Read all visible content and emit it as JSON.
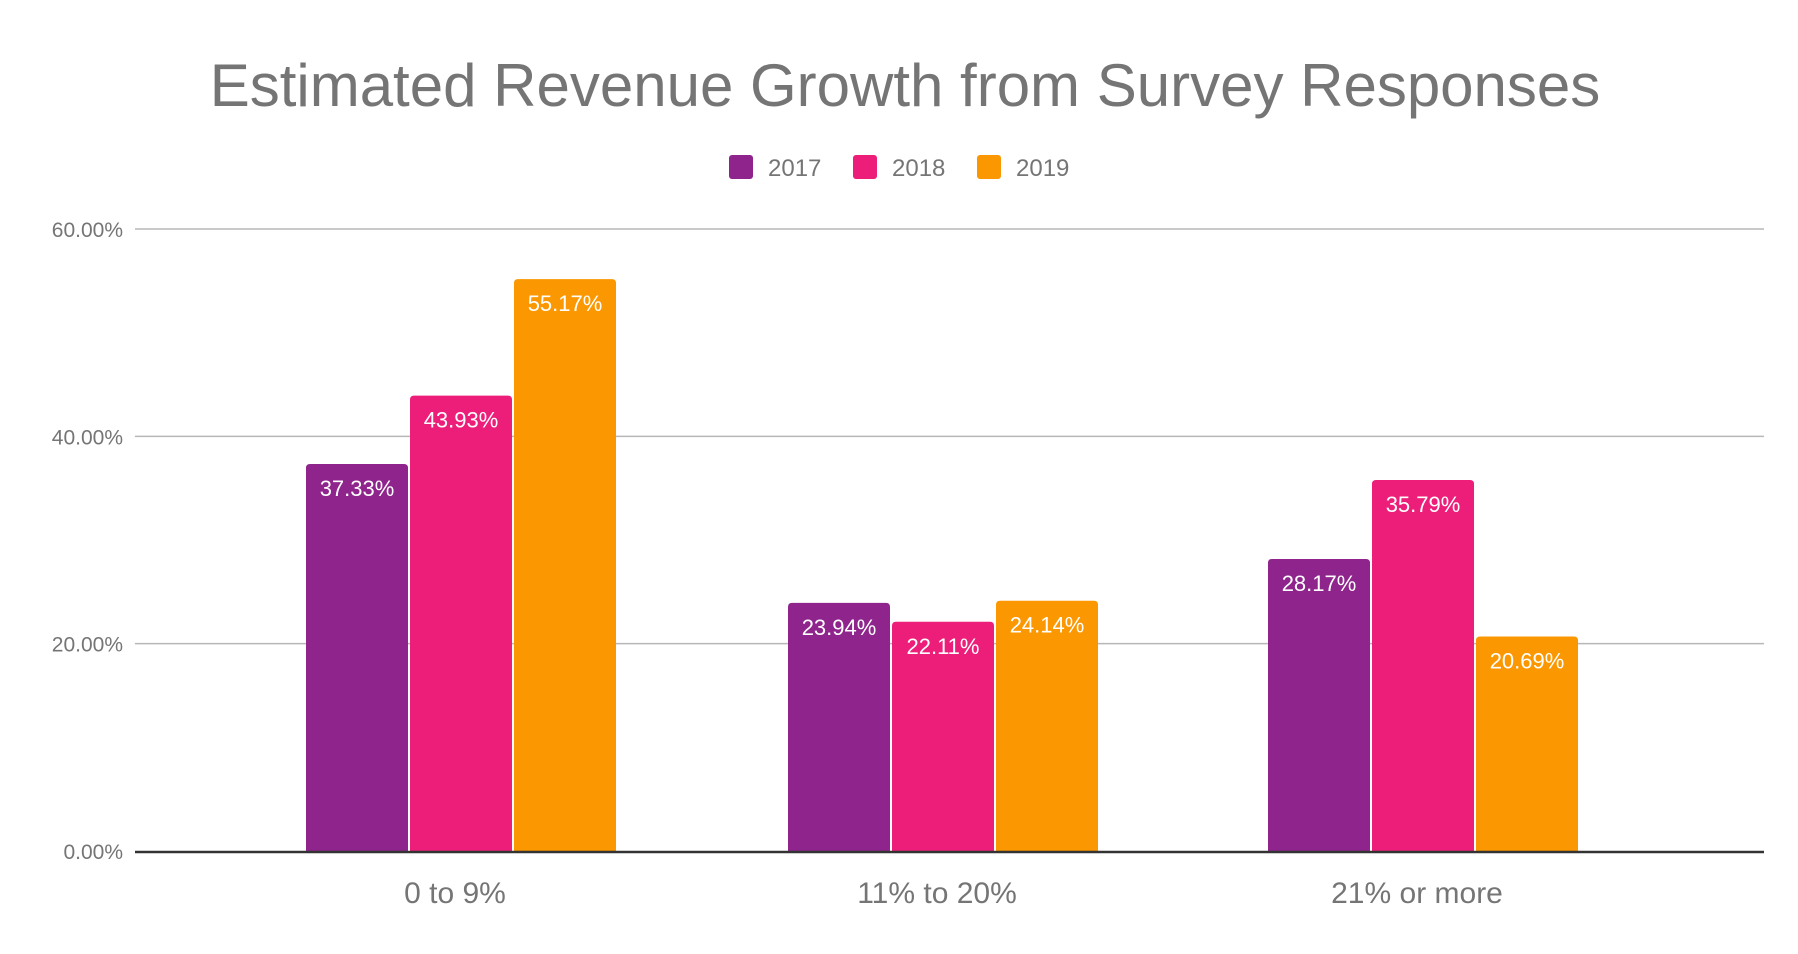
{
  "chart_data": {
    "type": "bar",
    "title": "Estimated Revenue Growth from Survey Responses",
    "xlabel": "",
    "ylabel": "",
    "categories": [
      "0 to 9%",
      "11% to 20%",
      "21% or more"
    ],
    "series": [
      {
        "name": "2017",
        "color": "#8E248C",
        "values": [
          37.33,
          23.94,
          28.17
        ],
        "labels": [
          "37.33%",
          "23.94%",
          "28.17%"
        ]
      },
      {
        "name": "2018",
        "color": "#EC1E79",
        "values": [
          43.93,
          22.11,
          35.79
        ],
        "labels": [
          "43.93%",
          "22.11%",
          "35.79%"
        ]
      },
      {
        "name": "2019",
        "color": "#FB9700",
        "values": [
          55.17,
          24.14,
          20.69
        ],
        "labels": [
          "55.17%",
          "24.14%",
          "20.69%"
        ]
      }
    ],
    "ylim": [
      0,
      60
    ],
    "yticks": [
      0,
      20,
      40,
      60
    ],
    "ytick_labels": [
      "0.00%",
      "20.00%",
      "40.00%",
      "60.00%"
    ],
    "grid": true,
    "legend": {
      "position": "top-center",
      "entries": [
        "2017",
        "2018",
        "2019"
      ]
    },
    "data_labels": "inside-end"
  }
}
